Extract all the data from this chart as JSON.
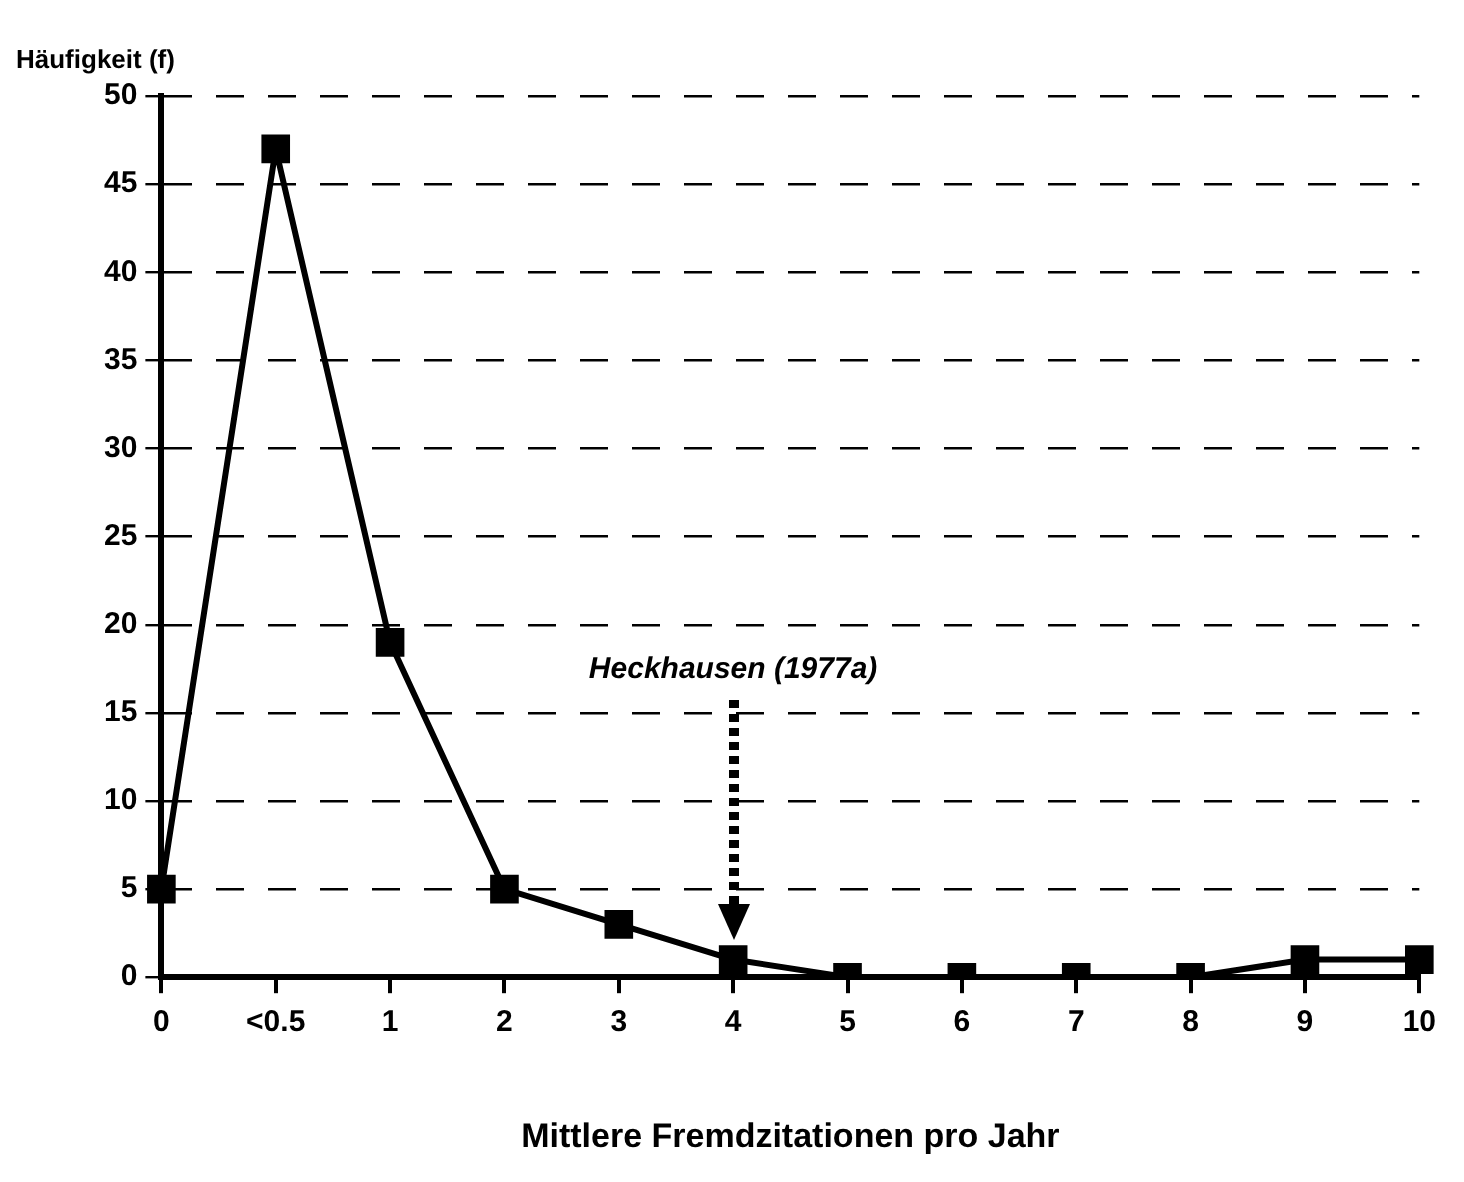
{
  "chart_data": {
    "type": "line",
    "xlabel": "Mittlere Fremdzitationen pro Jahr",
    "ylabel": "Häufigkeit (f)",
    "categories": [
      "0",
      "<0.5",
      "1",
      "2",
      "3",
      "4",
      "5",
      "6",
      "7",
      "8",
      "9",
      "10"
    ],
    "series": [
      {
        "color": "#000000",
        "values": [
          5,
          47,
          19,
          5,
          3,
          1,
          0,
          0,
          0,
          0,
          1,
          1
        ]
      }
    ],
    "ylim": [
      0,
      50
    ],
    "yticks": [
      0,
      5,
      10,
      15,
      20,
      25,
      30,
      35,
      40,
      45,
      50
    ],
    "grid": "y",
    "legend": false,
    "marker": "square",
    "line_style": "solid",
    "annotations": [
      "Heckhausen (1977a)"
    ]
  }
}
